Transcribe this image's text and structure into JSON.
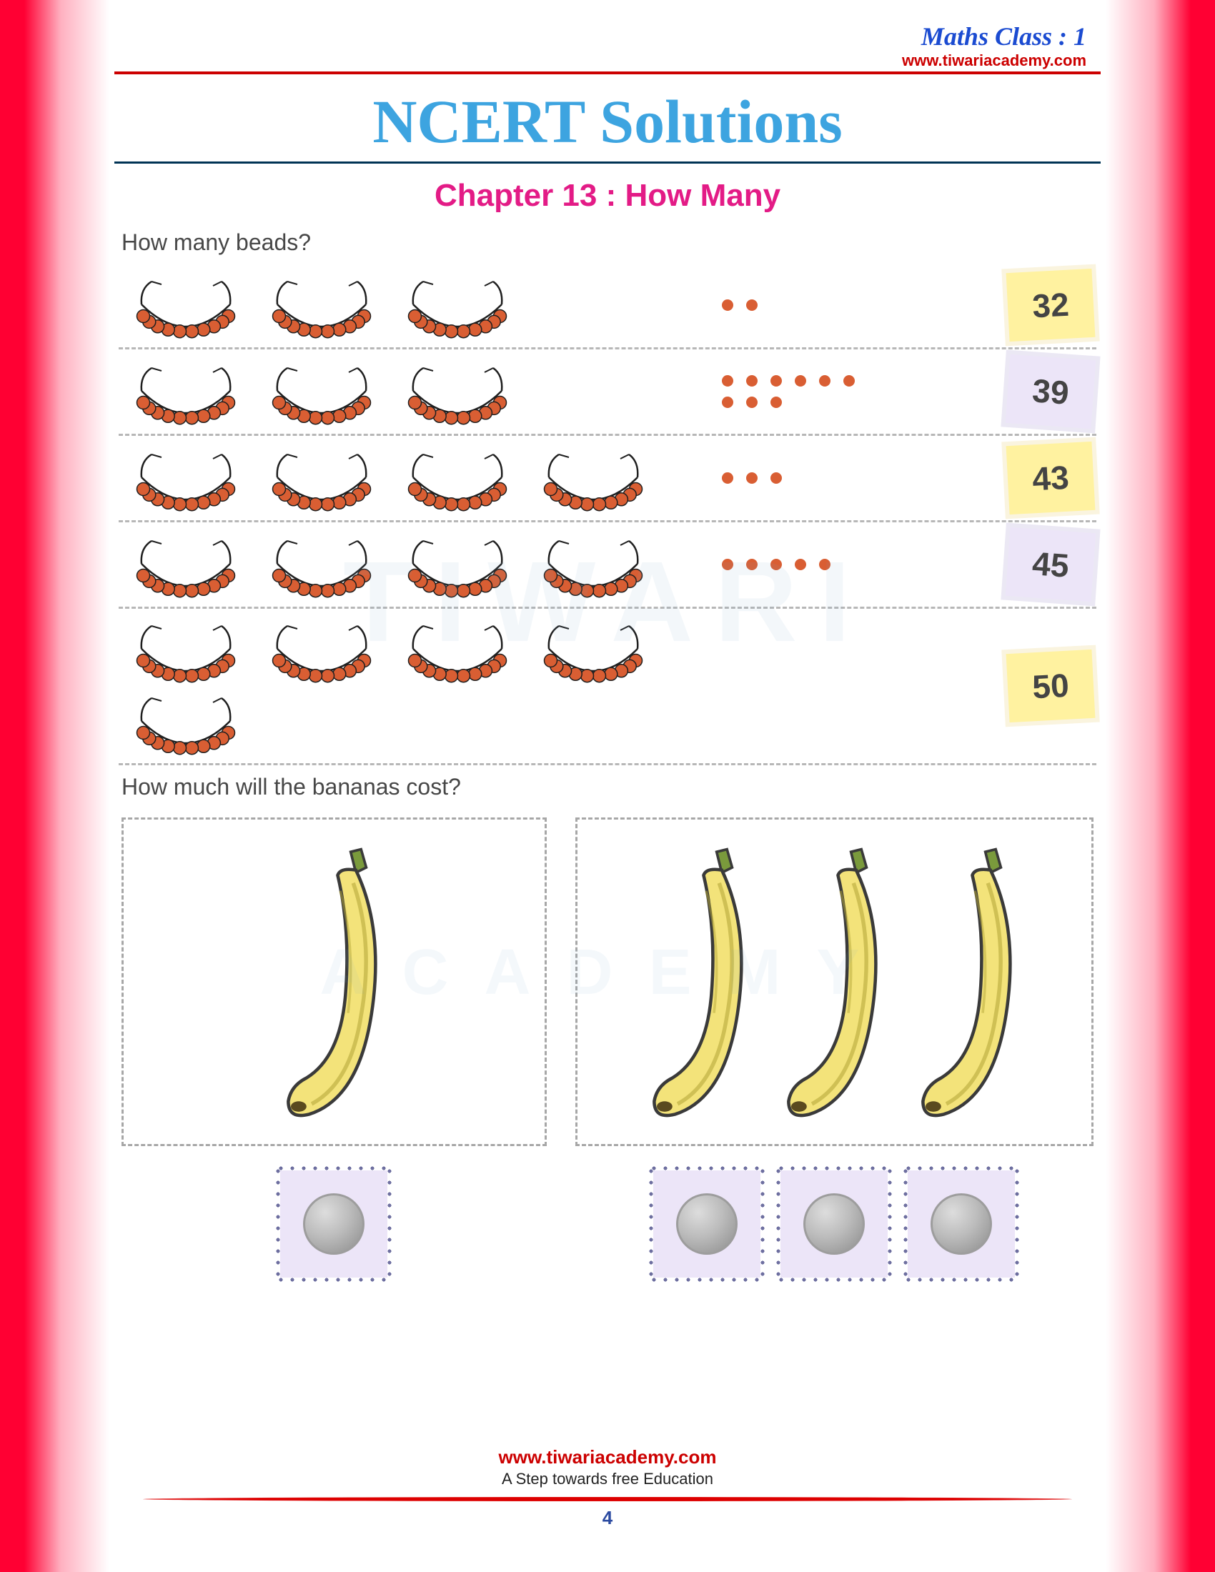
{
  "header": {
    "class_label": "Maths Class : 1",
    "site": "www.tiwariacademy.com",
    "title": "NCERT Solutions",
    "chapter": "Chapter 13 : How Many"
  },
  "colors": {
    "border_gradient_outer": "#ff0033",
    "border_gradient_inner": "#ffb0c0",
    "title_color": "#3da4e0",
    "chapter_color": "#e31b86",
    "bead_color": "#d95e33",
    "bead_outline": "#2a2a2a",
    "string_color": "#1f1f1f",
    "answer_yellow": "#fff2a0",
    "answer_purple": "#ece5f8",
    "dash_gray": "#a7a7a7",
    "link_red": "#cc0000",
    "banana_fill": "#f3e37a",
    "banana_shade": "#b8a93a",
    "watermark_text": "TIWARI",
    "watermark_text2": "ACADEMY"
  },
  "beads_section": {
    "question": "How many beads?",
    "rows": [
      {
        "strings": 3,
        "extra_dots": 2,
        "answer": "32",
        "box_style": "yellow"
      },
      {
        "strings": 3,
        "extra_dots": 9,
        "answer": "39",
        "box_style": "purple"
      },
      {
        "strings": 4,
        "extra_dots": 3,
        "answer": "43",
        "box_style": "yellow"
      },
      {
        "strings": 4,
        "extra_dots": 5,
        "answer": "45",
        "box_style": "purple"
      },
      {
        "strings": 5,
        "extra_dots": 0,
        "answer": "50",
        "box_style": "yellow"
      }
    ]
  },
  "banana_section": {
    "question": "How much will the bananas cost?",
    "boxes": [
      {
        "bananas": 1,
        "coins": 1
      },
      {
        "bananas": 3,
        "coins": 3
      }
    ]
  },
  "footer": {
    "link": "www.tiwariacademy.com",
    "tagline": "A Step towards free Education",
    "page_number": "4"
  }
}
